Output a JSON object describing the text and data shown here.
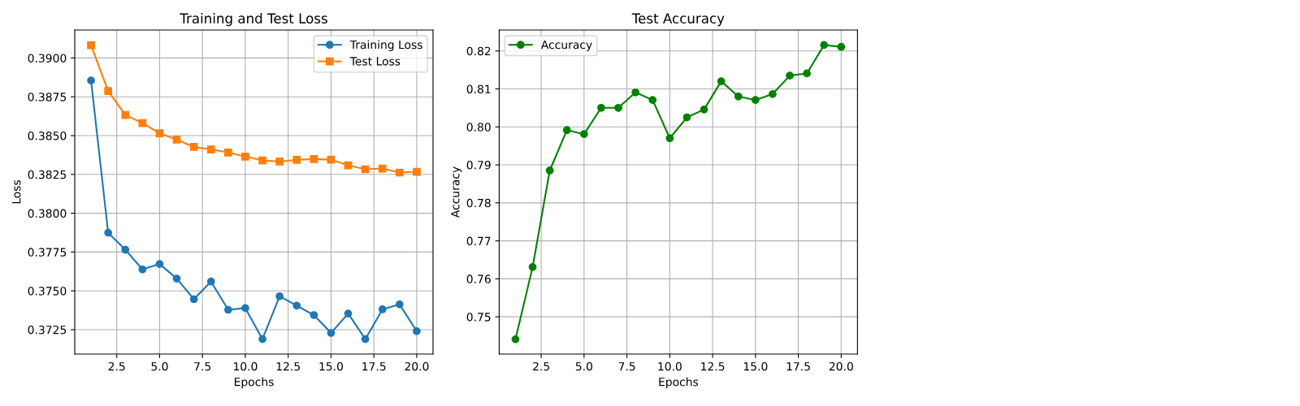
{
  "chart_data": [
    {
      "type": "line",
      "title": "Training and Test Loss",
      "xlabel": "Epochs",
      "ylabel": "Loss",
      "x": [
        1,
        2,
        3,
        4,
        5,
        6,
        7,
        8,
        9,
        10,
        11,
        12,
        13,
        14,
        15,
        16,
        17,
        18,
        19,
        20
      ],
      "series": [
        {
          "name": "Training Loss",
          "color": "#1f77b4",
          "marker": "circle",
          "values": [
            0.38855,
            0.37874,
            0.37765,
            0.37638,
            0.37673,
            0.37579,
            0.37446,
            0.3756,
            0.37378,
            0.37389,
            0.37189,
            0.37465,
            0.37405,
            0.37344,
            0.37229,
            0.37354,
            0.37189,
            0.37381,
            0.37413,
            0.3724
          ]
        },
        {
          "name": "Test Loss",
          "color": "#ff7f0e",
          "marker": "square",
          "values": [
            0.39082,
            0.38787,
            0.38633,
            0.38581,
            0.38515,
            0.38474,
            0.38427,
            0.38411,
            0.38391,
            0.38365,
            0.3834,
            0.38333,
            0.38344,
            0.38349,
            0.38345,
            0.38309,
            0.38283,
            0.38288,
            0.38262,
            0.38267
          ]
        }
      ],
      "xlim": [
        0.05,
        20.95
      ],
      "ylim": [
        0.37093,
        0.3918
      ],
      "xticks": [
        {
          "value": 2.5,
          "label": "2.5"
        },
        {
          "value": 5,
          "label": "5.0"
        },
        {
          "value": 7.5,
          "label": "7.5"
        },
        {
          "value": 10,
          "label": "10.0"
        },
        {
          "value": 12.5,
          "label": "12.5"
        },
        {
          "value": 15,
          "label": "15.0"
        },
        {
          "value": 17.5,
          "label": "17.5"
        },
        {
          "value": 20,
          "label": "20.0"
        }
      ],
      "yticks": [
        {
          "value": 0.3725,
          "label": "0.3725"
        },
        {
          "value": 0.375,
          "label": "0.3750"
        },
        {
          "value": 0.3775,
          "label": "0.3775"
        },
        {
          "value": 0.38,
          "label": "0.3800"
        },
        {
          "value": 0.3825,
          "label": "0.3825"
        },
        {
          "value": 0.385,
          "label": "0.3850"
        },
        {
          "value": 0.3875,
          "label": "0.3875"
        },
        {
          "value": 0.39,
          "label": "0.3900"
        }
      ],
      "grid": true,
      "legend": "top right",
      "line_style": "solid"
    },
    {
      "type": "line",
      "title": "Test Accuracy",
      "xlabel": "Epochs",
      "ylabel": "Accuracy",
      "x": [
        1,
        2,
        3,
        4,
        5,
        6,
        7,
        8,
        9,
        10,
        11,
        12,
        13,
        14,
        15,
        16,
        17,
        18,
        19,
        20
      ],
      "series": [
        {
          "name": "Accuracy",
          "color": "#008000",
          "marker": "circle",
          "values": [
            0.74408,
            0.7631,
            0.78852,
            0.79916,
            0.7981,
            0.80502,
            0.80502,
            0.80908,
            0.80708,
            0.79702,
            0.80251,
            0.80458,
            0.812,
            0.80801,
            0.80708,
            0.80865,
            0.81351,
            0.81408,
            0.82157,
            0.82107
          ]
        }
      ],
      "xlim": [
        0.05,
        20.95
      ],
      "ylim": [
        0.7402,
        0.8255
      ],
      "xticks": [
        {
          "value": 2.5,
          "label": "2.5"
        },
        {
          "value": 5,
          "label": "5.0"
        },
        {
          "value": 7.5,
          "label": "7.5"
        },
        {
          "value": 10,
          "label": "10.0"
        },
        {
          "value": 12.5,
          "label": "12.5"
        },
        {
          "value": 15,
          "label": "15.0"
        },
        {
          "value": 17.5,
          "label": "17.5"
        },
        {
          "value": 20,
          "label": "20.0"
        }
      ],
      "yticks": [
        {
          "value": 0.75,
          "label": "0.75"
        },
        {
          "value": 0.76,
          "label": "0.76"
        },
        {
          "value": 0.77,
          "label": "0.77"
        },
        {
          "value": 0.78,
          "label": "0.78"
        },
        {
          "value": 0.79,
          "label": "0.79"
        },
        {
          "value": 0.8,
          "label": "0.80"
        },
        {
          "value": 0.81,
          "label": "0.81"
        },
        {
          "value": 0.82,
          "label": "0.82"
        }
      ],
      "grid": true,
      "legend": "top left",
      "line_style": "solid"
    }
  ]
}
